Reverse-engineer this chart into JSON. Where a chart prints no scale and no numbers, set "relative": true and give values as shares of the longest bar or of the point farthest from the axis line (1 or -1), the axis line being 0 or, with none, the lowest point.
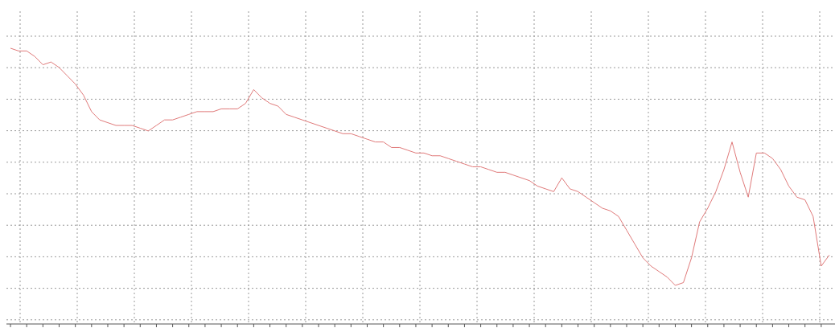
{
  "chart_data": {
    "type": "line",
    "relative": true,
    "grid": true,
    "marker": "none",
    "line_style": "solid",
    "categories": [
      null,
      null,
      null,
      null,
      null,
      null,
      null,
      null,
      null,
      null,
      null,
      null,
      null,
      null,
      null,
      null,
      null,
      null,
      null,
      null,
      null,
      null,
      null,
      null,
      null,
      null,
      null,
      null,
      null,
      null,
      null,
      null,
      null,
      null,
      null,
      null,
      null,
      null,
      null,
      null,
      null,
      null,
      null,
      null,
      null,
      null,
      null,
      null,
      null,
      null,
      null,
      null,
      null,
      null,
      null,
      null,
      null,
      null,
      null,
      null,
      null,
      null,
      null,
      null,
      null,
      null,
      null,
      null,
      null,
      null,
      null,
      null,
      null,
      null,
      null,
      null,
      null,
      null,
      null,
      null,
      null,
      null,
      null,
      null,
      null,
      null,
      null,
      null,
      null,
      null,
      null,
      null,
      null,
      null,
      null,
      null,
      null,
      null,
      null,
      null,
      null,
      null
    ],
    "series": [
      {
        "color": "#e07a7a",
        "values": [
          1.0,
          0.99,
          0.99,
          0.97,
          0.94,
          0.95,
          0.93,
          0.9,
          0.87,
          0.83,
          0.77,
          0.74,
          0.73,
          0.72,
          0.72,
          0.72,
          0.71,
          0.7,
          0.72,
          0.74,
          0.74,
          0.75,
          0.76,
          0.77,
          0.77,
          0.77,
          0.78,
          0.78,
          0.78,
          0.8,
          0.85,
          0.82,
          0.8,
          0.79,
          0.76,
          0.75,
          0.74,
          0.73,
          0.72,
          0.71,
          0.7,
          0.69,
          0.69,
          0.68,
          0.67,
          0.66,
          0.66,
          0.64,
          0.64,
          0.63,
          0.62,
          0.62,
          0.61,
          0.61,
          0.6,
          0.59,
          0.58,
          0.57,
          0.57,
          0.56,
          0.55,
          0.55,
          0.54,
          0.53,
          0.52,
          0.5,
          0.49,
          0.48,
          0.53,
          0.49,
          0.48,
          0.46,
          0.44,
          0.42,
          0.41,
          0.39,
          0.34,
          0.29,
          0.24,
          0.21,
          0.19,
          0.17,
          0.14,
          0.15,
          0.24,
          0.37,
          0.42,
          0.48,
          0.56,
          0.66,
          0.55,
          0.46,
          0.62,
          0.62,
          0.6,
          0.56,
          0.5,
          0.46,
          0.45,
          0.39,
          0.21,
          0.25
        ]
      }
    ]
  }
}
